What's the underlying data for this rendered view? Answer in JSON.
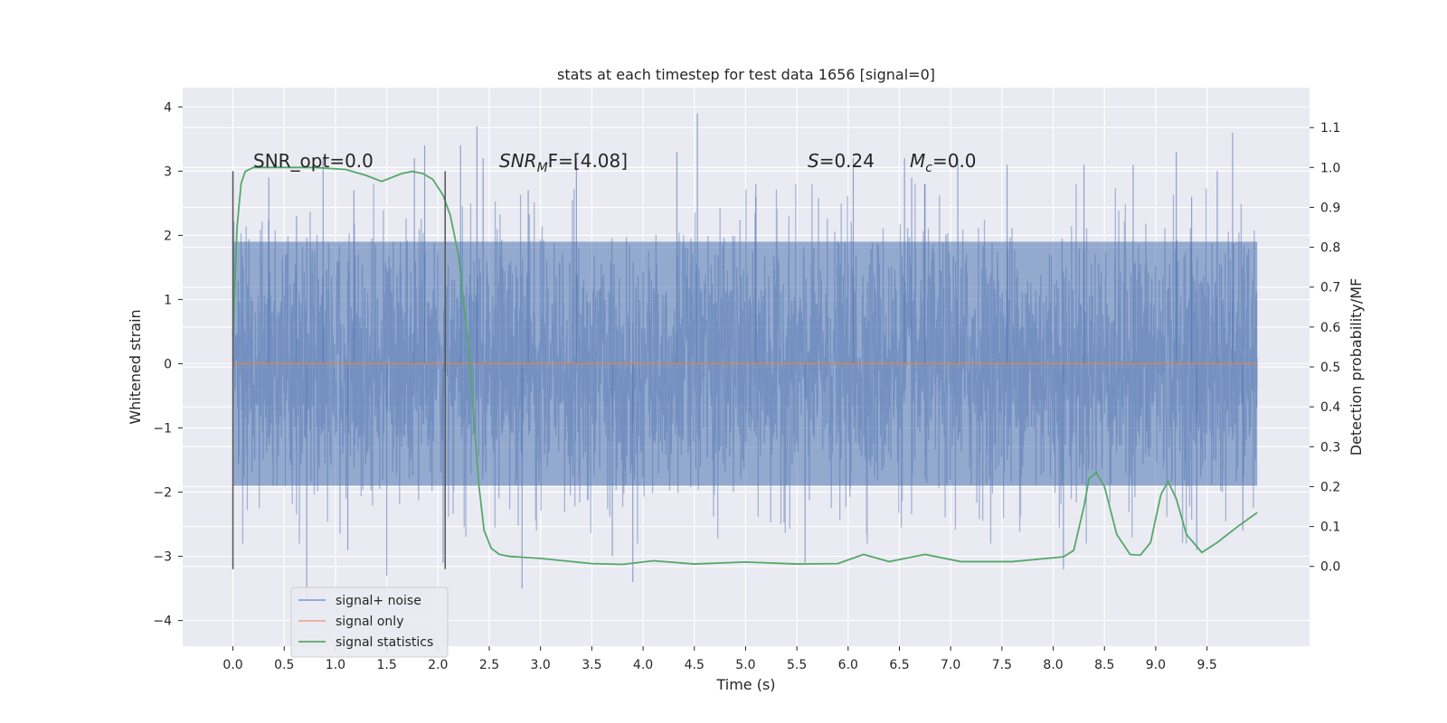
{
  "chart_data": {
    "type": "line",
    "title": "stats at each timestep for test data 1656 [signal=0]",
    "xlabel": "Time (s)",
    "ylabel": "Whitened strain",
    "y2label": "Detection probability/MF",
    "xlim": [
      -0.49,
      10.5
    ],
    "ylim": [
      -4.4,
      4.3
    ],
    "y2lim": [
      -0.2,
      1.2
    ],
    "xticks": [
      0.0,
      0.5,
      1.0,
      1.5,
      2.0,
      2.5,
      3.0,
      3.5,
      4.0,
      4.5,
      5.0,
      5.5,
      6.0,
      6.5,
      7.0,
      7.5,
      8.0,
      8.5,
      9.0,
      9.5
    ],
    "xtick_labels": [
      "0.0",
      "0.5",
      "1.0",
      "1.5",
      "2.0",
      "2.5",
      "3.0",
      "3.5",
      "4.0",
      "4.5",
      "5.0",
      "5.5",
      "6.0",
      "6.5",
      "7.0",
      "7.5",
      "8.0",
      "8.5",
      "9.0",
      "9.5"
    ],
    "yticks": [
      -4,
      -3,
      -2,
      -1,
      0,
      1,
      2,
      3,
      4
    ],
    "ytick_labels": [
      "−4",
      "−3",
      "−2",
      "−1",
      "0",
      "1",
      "2",
      "3",
      "4"
    ],
    "y2ticks": [
      0.0,
      0.1,
      0.2,
      0.3,
      0.4,
      0.5,
      0.6,
      0.7,
      0.8,
      0.9,
      1.0,
      1.1
    ],
    "y2tick_labels": [
      "0.0",
      "0.1",
      "0.2",
      "0.3",
      "0.4",
      "0.5",
      "0.6",
      "0.7",
      "0.8",
      "0.9",
      "1.0",
      "1.1"
    ],
    "grid": true,
    "legend_position": "lower-left",
    "annotations": {
      "snr_opt": "SNR_opt=0.0",
      "snr_mf_prefix": "SNR",
      "snr_mf_sub": "M",
      "snr_mf_suffix": "F=[4.08]",
      "s_var": "S",
      "s_value": "=0.24",
      "mc_var": "M",
      "mc_sub": "c",
      "mc_value": "=0.0"
    },
    "markers": [
      {
        "x": 0.0,
        "y_range": [
          -3.2,
          3.0
        ]
      },
      {
        "x": 2.07,
        "y_range": [
          -3.2,
          3.0
        ]
      }
    ],
    "series": [
      {
        "name": "signal+ noise",
        "color": "#4c72b0",
        "axis": "left",
        "style": "noise",
        "t_range": [
          0.0,
          9.99
        ],
        "typical_amplitude": [
          -1.9,
          1.9
        ],
        "spikes": [
          [
            0.35,
            2.9
          ],
          [
            0.62,
            2.3
          ],
          [
            0.72,
            -3.7
          ],
          [
            0.88,
            3.2
          ],
          [
            1.12,
            -2.9
          ],
          [
            1.18,
            2.7
          ],
          [
            1.5,
            -3.3
          ],
          [
            1.77,
            3.2
          ],
          [
            1.87,
            3.4
          ],
          [
            2.05,
            -3.1
          ],
          [
            2.22,
            3.4
          ],
          [
            2.38,
            3.7
          ],
          [
            2.44,
            3.2
          ],
          [
            2.82,
            -3.5
          ],
          [
            2.88,
            2.7
          ],
          [
            3.35,
            3.2
          ],
          [
            3.7,
            -3.0
          ],
          [
            3.9,
            -3.4
          ],
          [
            4.33,
            3.3
          ],
          [
            4.53,
            3.9
          ],
          [
            5.1,
            2.8
          ],
          [
            5.58,
            -3.1
          ],
          [
            6.05,
            3.2
          ],
          [
            6.55,
            3.2
          ],
          [
            6.62,
            2.9
          ],
          [
            6.75,
            2.8
          ],
          [
            7.07,
            3.2
          ],
          [
            7.55,
            3.1
          ],
          [
            8.1,
            -3.2
          ],
          [
            8.3,
            3.1
          ],
          [
            8.78,
            3.1
          ],
          [
            9.2,
            3.3
          ],
          [
            9.35,
            2.6
          ],
          [
            9.4,
            -2.9
          ],
          [
            9.6,
            3.0
          ],
          [
            9.75,
            3.6
          ],
          [
            9.85,
            -2.6
          ]
        ]
      },
      {
        "name": "signal only",
        "color": "#dd8452",
        "axis": "left",
        "style": "line",
        "x": [
          0.0,
          9.99
        ],
        "y": [
          0.0,
          0.0
        ]
      },
      {
        "name": "signal statistics",
        "color": "#55a868",
        "axis": "right",
        "style": "line",
        "x": [
          0.0,
          0.04,
          0.08,
          0.12,
          0.2,
          0.3,
          0.5,
          0.8,
          1.1,
          1.3,
          1.45,
          1.55,
          1.65,
          1.75,
          1.85,
          1.95,
          2.05,
          2.12,
          2.2,
          2.3,
          2.35,
          2.4,
          2.45,
          2.52,
          2.6,
          2.7,
          3.0,
          3.5,
          3.8,
          4.1,
          4.5,
          5.0,
          5.5,
          5.9,
          6.15,
          6.4,
          6.75,
          7.1,
          7.6,
          8.1,
          8.2,
          8.3,
          8.35,
          8.42,
          8.5,
          8.62,
          8.75,
          8.85,
          8.95,
          9.05,
          9.12,
          9.2,
          9.3,
          9.45,
          9.6,
          9.8,
          9.99
        ],
        "y": [
          0.58,
          0.85,
          0.96,
          0.99,
          1.0,
          1.0,
          1.0,
          1.0,
          0.995,
          0.98,
          0.965,
          0.975,
          0.985,
          0.99,
          0.985,
          0.97,
          0.93,
          0.88,
          0.78,
          0.55,
          0.37,
          0.2,
          0.09,
          0.045,
          0.03,
          0.025,
          0.02,
          0.007,
          0.005,
          0.014,
          0.006,
          0.011,
          0.006,
          0.007,
          0.03,
          0.012,
          0.03,
          0.012,
          0.012,
          0.024,
          0.04,
          0.15,
          0.22,
          0.235,
          0.2,
          0.08,
          0.03,
          0.028,
          0.06,
          0.18,
          0.213,
          0.17,
          0.08,
          0.035,
          0.06,
          0.1,
          0.135
        ]
      }
    ]
  }
}
